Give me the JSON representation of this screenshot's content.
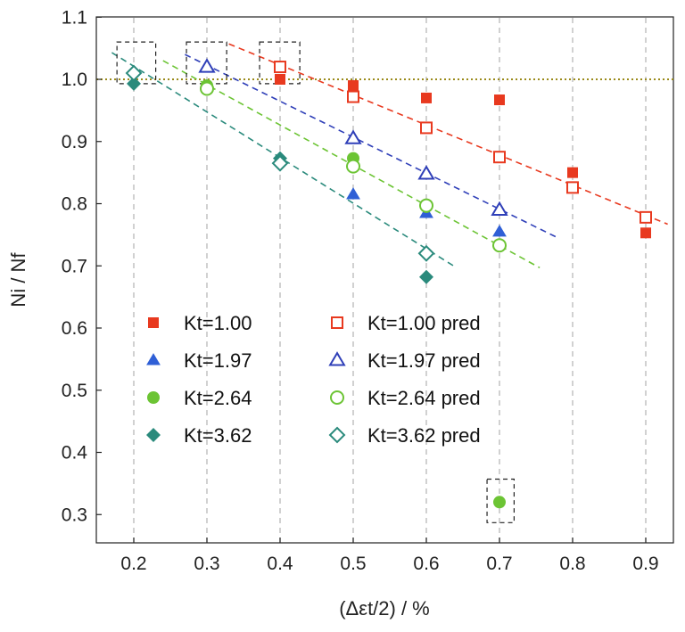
{
  "chart_data": {
    "type": "scatter",
    "xlabel": "(Δεt/2) / %",
    "ylabel": "Ni / Nf",
    "xlim": [
      0.15,
      0.95
    ],
    "ylim": [
      0.25,
      1.1
    ],
    "x_ticks": [
      "0.2",
      "0.3",
      "0.4",
      "0.5",
      "0.6",
      "0.7",
      "0.8",
      "0.9"
    ],
    "y_ticks": [
      "0.3",
      "0.4",
      "0.5",
      "0.6",
      "0.7",
      "0.8",
      "0.9",
      "1.0",
      "1.1"
    ],
    "grid": "vertical dashed",
    "legend_position": "lower-center",
    "reference_line": {
      "y": 1.0,
      "style": "dotted",
      "color": "#9a8a1a"
    },
    "series": [
      {
        "name": "Kt=1.00",
        "marker": "square",
        "filled": true,
        "color": "#e8391f",
        "x": [
          0.4,
          0.5,
          0.6,
          0.7,
          0.8,
          0.9
        ],
        "y": [
          1.0,
          0.99,
          0.97,
          0.967,
          0.85,
          0.753
        ]
      },
      {
        "name": "Kt=1.97",
        "marker": "triangle",
        "filled": true,
        "color": "#2f5fd6",
        "x": [
          0.5,
          0.6,
          0.7
        ],
        "y": [
          0.815,
          0.785,
          0.755
        ]
      },
      {
        "name": "Kt=2.64",
        "marker": "circle",
        "filled": true,
        "color": "#6cc434",
        "x": [
          0.3,
          0.5,
          0.6,
          0.7
        ],
        "y": [
          0.99,
          0.873,
          0.795,
          0.32
        ]
      },
      {
        "name": "Kt=3.62",
        "marker": "diamond",
        "filled": true,
        "color": "#2a8a7c",
        "x": [
          0.2,
          0.4,
          0.6
        ],
        "y": [
          0.993,
          0.873,
          0.682
        ]
      },
      {
        "name": "Kt=1.00 pred",
        "marker": "square",
        "filled": false,
        "color": "#e8391f",
        "x": [
          0.4,
          0.5,
          0.6,
          0.7,
          0.8,
          0.9
        ],
        "y": [
          1.02,
          0.972,
          0.922,
          0.875,
          0.826,
          0.778
        ]
      },
      {
        "name": "Kt=1.97 pred",
        "marker": "triangle",
        "filled": false,
        "color": "#2f3fb8",
        "x": [
          0.3,
          0.5,
          0.6,
          0.7
        ],
        "y": [
          1.02,
          0.905,
          0.848,
          0.79
        ]
      },
      {
        "name": "Kt=2.64 pred",
        "marker": "circle",
        "filled": false,
        "color": "#6cc434",
        "x": [
          0.3,
          0.5,
          0.6,
          0.7
        ],
        "y": [
          0.985,
          0.86,
          0.797,
          0.733
        ]
      },
      {
        "name": "Kt=3.62 pred",
        "marker": "diamond",
        "filled": false,
        "color": "#2a8a7c",
        "x": [
          0.2,
          0.4,
          0.6
        ],
        "y": [
          1.01,
          0.865,
          0.72
        ]
      }
    ],
    "trend_lines": [
      {
        "series": "Kt=1.00 pred",
        "color": "#e8391f",
        "x": [
          0.33,
          0.93
        ],
        "y": [
          1.057,
          0.767
        ]
      },
      {
        "series": "Kt=1.97 pred",
        "color": "#2f3fb8",
        "x": [
          0.27,
          0.78
        ],
        "y": [
          1.04,
          0.745
        ]
      },
      {
        "series": "Kt=2.64 pred",
        "color": "#6cc434",
        "x": [
          0.24,
          0.755
        ],
        "y": [
          1.03,
          0.697
        ]
      },
      {
        "series": "Kt=3.62 pred",
        "color": "#2a8a7c",
        "x": [
          0.17,
          0.64
        ],
        "y": [
          1.043,
          0.698
        ]
      }
    ],
    "highlight_boxes": [
      {
        "x": [
          0.177,
          0.23
        ],
        "y": [
          0.993,
          1.06
        ]
      },
      {
        "x": [
          0.272,
          0.327
        ],
        "y": [
          0.993,
          1.06
        ]
      },
      {
        "x": [
          0.372,
          0.427
        ],
        "y": [
          0.993,
          1.06
        ]
      },
      {
        "x": [
          0.683,
          0.72
        ],
        "y": [
          0.287,
          0.357
        ]
      }
    ]
  }
}
